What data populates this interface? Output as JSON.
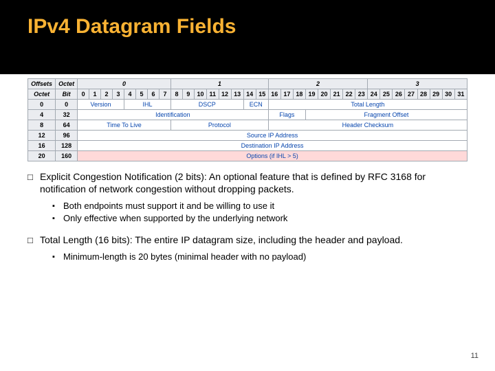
{
  "title": "IPv4 Datagram Fields",
  "page_number": "11",
  "colors": {
    "title_color": "#f9b233",
    "header_bg": "#000000",
    "table_header_bg": "#eaecf0",
    "table_border": "#a2a9b1",
    "field_link_color": "#0645ad",
    "options_bg": "#ffd9d9"
  },
  "ipv4_table": {
    "top_headers": {
      "offsets": "Offsets",
      "octet": "Octet",
      "bit": "Bit"
    },
    "octet_groups": [
      "0",
      "1",
      "2",
      "3"
    ],
    "bits": [
      "0",
      "1",
      "2",
      "3",
      "4",
      "5",
      "6",
      "7",
      "8",
      "9",
      "10",
      "11",
      "12",
      "13",
      "14",
      "15",
      "16",
      "17",
      "18",
      "19",
      "20",
      "21",
      "22",
      "23",
      "24",
      "25",
      "26",
      "27",
      "28",
      "29",
      "30",
      "31"
    ],
    "rows": [
      {
        "octet_off": "0",
        "bit_off": "0",
        "cells": [
          {
            "span": 4,
            "label": "Version"
          },
          {
            "span": 4,
            "label": "IHL"
          },
          {
            "span": 6,
            "label": "DSCP"
          },
          {
            "span": 2,
            "label": "ECN"
          },
          {
            "span": 16,
            "label": "Total Length"
          }
        ]
      },
      {
        "octet_off": "4",
        "bit_off": "32",
        "cells": [
          {
            "span": 16,
            "label": "Identification"
          },
          {
            "span": 3,
            "label": "Flags"
          },
          {
            "span": 13,
            "label": "Fragment Offset"
          }
        ]
      },
      {
        "octet_off": "8",
        "bit_off": "64",
        "cells": [
          {
            "span": 8,
            "label": "Time To Live"
          },
          {
            "span": 8,
            "label": "Protocol"
          },
          {
            "span": 16,
            "label": "Header Checksum"
          }
        ]
      },
      {
        "octet_off": "12",
        "bit_off": "96",
        "cells": [
          {
            "span": 32,
            "label": "Source IP Address"
          }
        ]
      },
      {
        "octet_off": "16",
        "bit_off": "128",
        "cells": [
          {
            "span": 32,
            "label": "Destination IP Address"
          }
        ]
      },
      {
        "octet_off": "20",
        "bit_off": "160",
        "cells": [
          {
            "span": 32,
            "label": "Options (if IHL > 5)",
            "class": "options"
          }
        ]
      }
    ]
  },
  "bullets": [
    {
      "text": "Explicit Congestion Notification (2 bits): An optional feature that is defined by RFC 3168 for notification of network congestion without dropping packets.",
      "subs": [
        "Both endpoints must support it and be willing to use it",
        "Only effective when supported by the underlying network"
      ]
    },
    {
      "text": "Total Length (16 bits): The entire IP datagram size, including the header and payload.",
      "subs": [
        "Minimum-length is 20 bytes (minimal header with no payload)"
      ]
    }
  ]
}
